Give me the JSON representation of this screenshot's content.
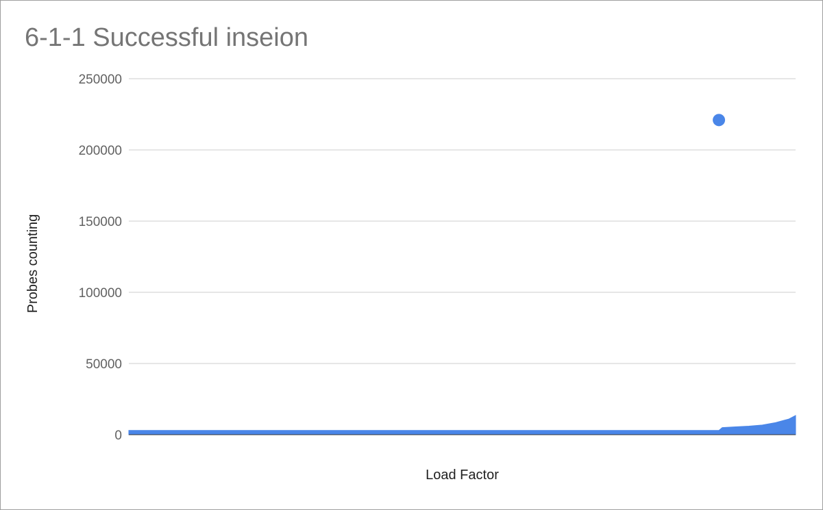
{
  "chart_data": {
    "type": "area",
    "title": "6-1-1 Successful inseion",
    "xlabel": "Load Factor",
    "ylabel": "Probes counting",
    "ylim": [
      0,
      250000
    ],
    "yticks": [
      0,
      50000,
      100000,
      150000,
      200000,
      250000
    ],
    "ytick_labels": [
      "0",
      "50000",
      "100000",
      "150000",
      "200000",
      "250000"
    ],
    "grid": true,
    "legend": "none",
    "colors": {
      "series": "#4a86e8",
      "grid": "#cccccc",
      "baseline": "#333333"
    },
    "x": [
      0,
      0.1,
      0.2,
      0.3,
      0.4,
      0.5,
      0.6,
      0.7,
      0.8,
      0.86,
      0.885,
      0.89,
      0.91,
      0.93,
      0.95,
      0.97,
      0.99,
      1.0
    ],
    "series": [
      {
        "values": [
          3000,
          3000,
          3000,
          3000,
          3000,
          3000,
          3000,
          3000,
          3000,
          3000,
          3000,
          5000,
          5500,
          6000,
          6800,
          8500,
          11000,
          13500
        ]
      }
    ],
    "outlier": {
      "x": 0.885,
      "y": 221000
    }
  }
}
